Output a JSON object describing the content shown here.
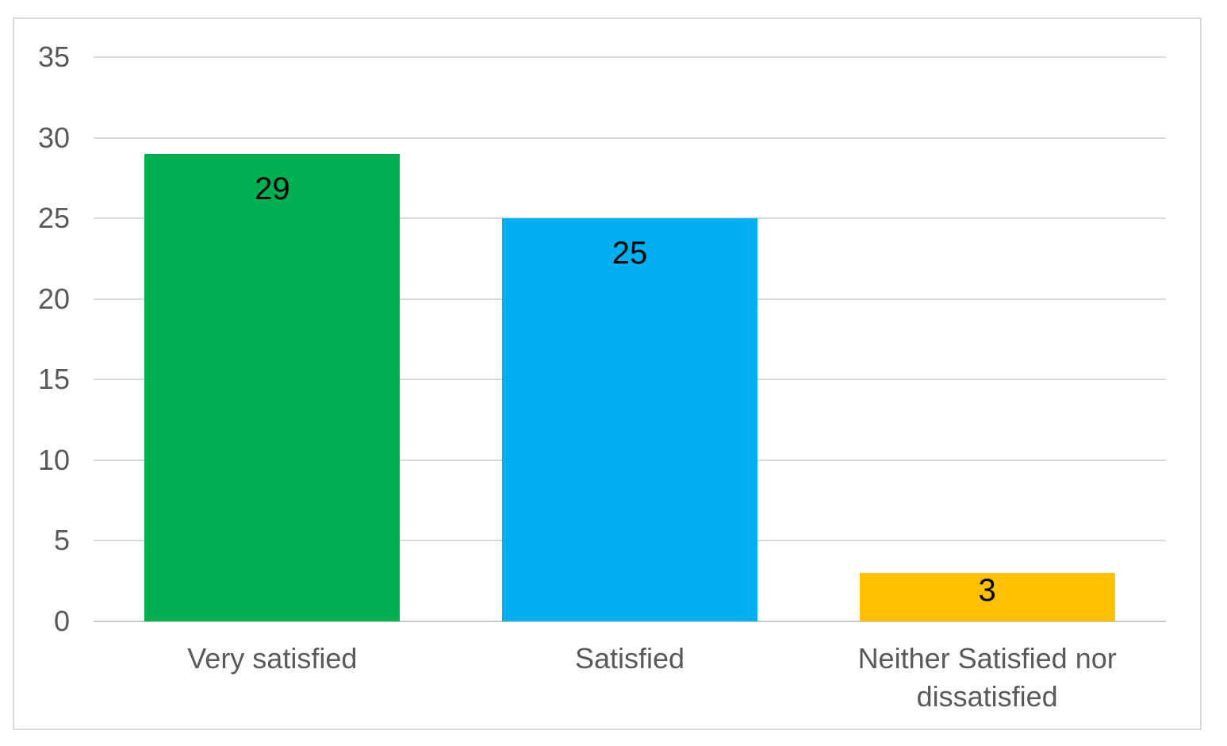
{
  "chart_data": {
    "type": "bar",
    "title": "",
    "xlabel": "",
    "ylabel": "",
    "categories": [
      "Very satisfied",
      "Satisfied",
      "Neither Satisfied nor dissatisfied"
    ],
    "values": [
      29,
      25,
      3
    ],
    "data_labels": [
      "29",
      "25",
      "3"
    ],
    "bar_colors": [
      "#00B050",
      "#00B0F0",
      "#FFC000"
    ],
    "yticks": [
      0,
      5,
      10,
      15,
      20,
      25,
      30,
      35
    ],
    "ytick_labels": [
      "0",
      "5",
      "10",
      "15",
      "20",
      "25",
      "30",
      "35"
    ],
    "ylim": [
      0,
      35
    ],
    "grid": "horizontal",
    "legend": "none",
    "data_label_position": "inside-end",
    "colors": {
      "grid_line": "#D9D9D9",
      "axis_line": "#C9C9C9",
      "tick_text": "#595959",
      "category_text": "#595959",
      "data_label_text": "#000000",
      "frame_border": "#D9D9D9",
      "background": "#FFFFFF"
    }
  }
}
